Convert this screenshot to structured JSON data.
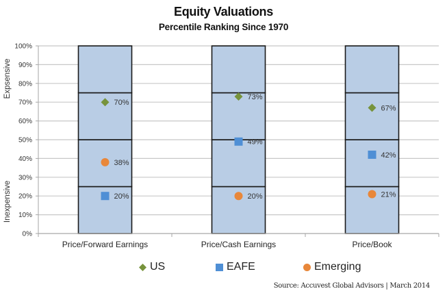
{
  "chart_data": {
    "type": "scatter",
    "title": "Equity Valuations",
    "subtitle": "Percentile Ranking Since 1970",
    "xlabel": "",
    "ylabel_top": "Expsensive",
    "ylabel_bottom": "Inexpensive",
    "ylim": [
      0,
      100
    ],
    "yticks": [
      "0%",
      "10%",
      "20%",
      "30%",
      "40%",
      "50%",
      "60%",
      "70%",
      "80%",
      "90%",
      "100%"
    ],
    "grid": true,
    "categories": [
      "Price/Forward Earnings",
      "Price/Cash Earnings",
      "Price/Book"
    ],
    "quartile_bands": [
      25,
      50,
      75,
      100
    ],
    "series": [
      {
        "name": "US",
        "marker": "diamond",
        "color": "#77933C",
        "values": [
          70,
          73,
          67
        ],
        "labels": [
          "70%",
          "73%",
          "67%"
        ]
      },
      {
        "name": "EAFE",
        "marker": "square",
        "color": "#4F8FD5",
        "values": [
          20,
          49,
          42
        ],
        "labels": [
          "20%",
          "49%",
          "42%"
        ]
      },
      {
        "name": "Emerging",
        "marker": "circle",
        "color": "#E8873A",
        "values": [
          38,
          20,
          21
        ],
        "labels": [
          "38%",
          "20%",
          "21%"
        ]
      }
    ],
    "legend_position": "bottom",
    "band_fill": "#B9CDE5",
    "source": "Source: Accuvest Global Advisors | March 2014"
  }
}
